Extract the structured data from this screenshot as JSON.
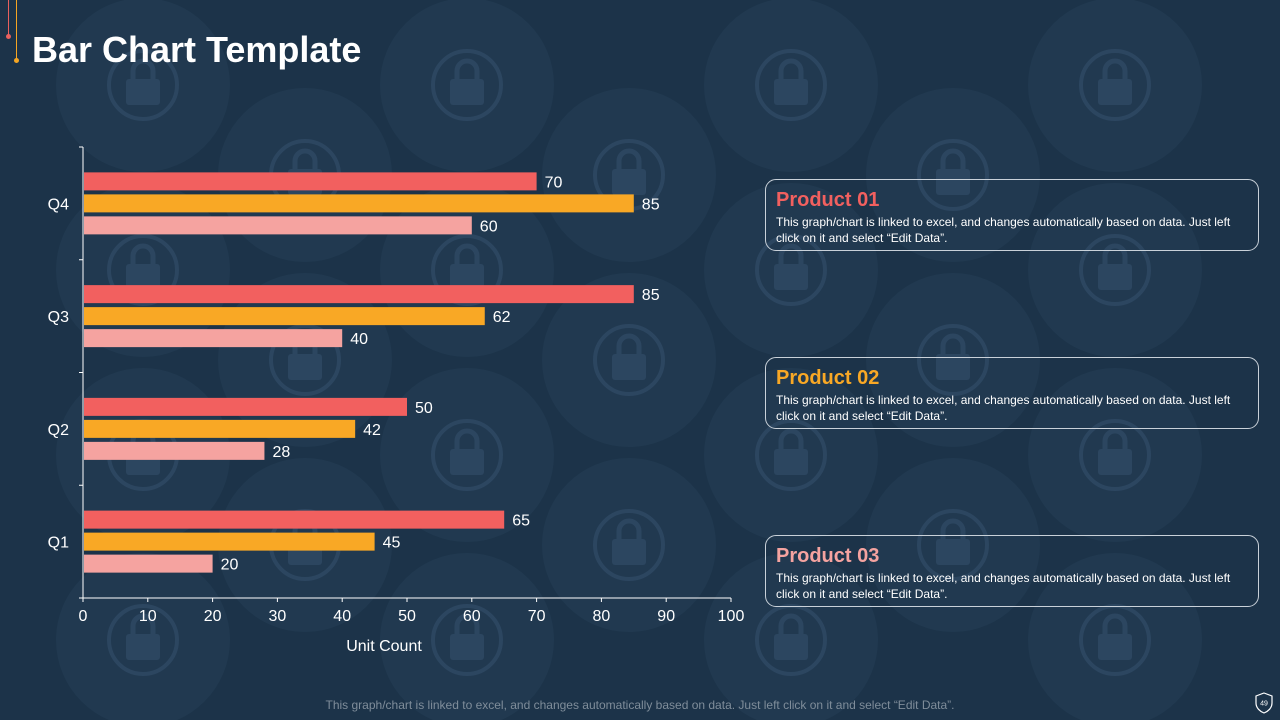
{
  "page": {
    "title": "Bar Chart Template",
    "footer": "This graph/chart is linked to excel, and changes automatically based on data. Just left click on it and select “Edit Data”.",
    "page_number": "49"
  },
  "colors": {
    "background": "#1c3349",
    "product_01": "#f2605f",
    "product_02": "#f9a825",
    "product_03": "#f5a3a0",
    "axis": "#ffffff",
    "pattern": "#233c53"
  },
  "chart_data": {
    "type": "bar",
    "orientation": "horizontal",
    "categories": [
      "Q1",
      "Q2",
      "Q3",
      "Q4"
    ],
    "series": [
      {
        "name": "Product 01",
        "values": [
          65,
          50,
          85,
          70
        ]
      },
      {
        "name": "Product 02",
        "values": [
          45,
          42,
          62,
          85
        ]
      },
      {
        "name": "Product 03",
        "values": [
          20,
          28,
          40,
          60
        ]
      }
    ],
    "xlabel": "Unit Count",
    "ylabel": "",
    "xlim": [
      0,
      100
    ],
    "xticks": [
      0,
      10,
      20,
      30,
      40,
      50,
      60,
      70,
      80,
      90,
      100
    ],
    "data_labels": true,
    "grid": false
  },
  "cards": [
    {
      "title": "Product 01",
      "text": "This graph/chart is linked to excel, and changes automatically based on data. Just left click on it and select “Edit Data”."
    },
    {
      "title": "Product 02",
      "text": "This graph/chart is linked to excel, and changes automatically based on data. Just left click on it and select “Edit Data”."
    },
    {
      "title": "Product 03",
      "text": "This graph/chart is linked to excel, and changes automatically based on data. Just left click on it and select “Edit Data”."
    }
  ]
}
